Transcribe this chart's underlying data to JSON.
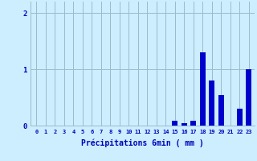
{
  "categories": [
    0,
    1,
    2,
    3,
    4,
    5,
    6,
    7,
    8,
    9,
    10,
    11,
    12,
    13,
    14,
    15,
    16,
    17,
    18,
    19,
    20,
    21,
    22,
    23
  ],
  "values": [
    0,
    0,
    0,
    0,
    0,
    0,
    0,
    0,
    0,
    0,
    0,
    0,
    0,
    0,
    0,
    0.08,
    0.04,
    0.08,
    1.3,
    0.8,
    0.55,
    0,
    0.3,
    1.0
  ],
  "bar_color": "#0000cc",
  "bg_color": "#cceeff",
  "grid_color": "#99bbcc",
  "xlabel": "Précipitations 6min ( mm )",
  "xlabel_color": "#0000bb",
  "tick_color": "#0000bb",
  "ylim": [
    0,
    2.2
  ],
  "yticks": [
    0,
    1,
    2
  ],
  "figsize": [
    3.2,
    2.0
  ],
  "dpi": 100
}
